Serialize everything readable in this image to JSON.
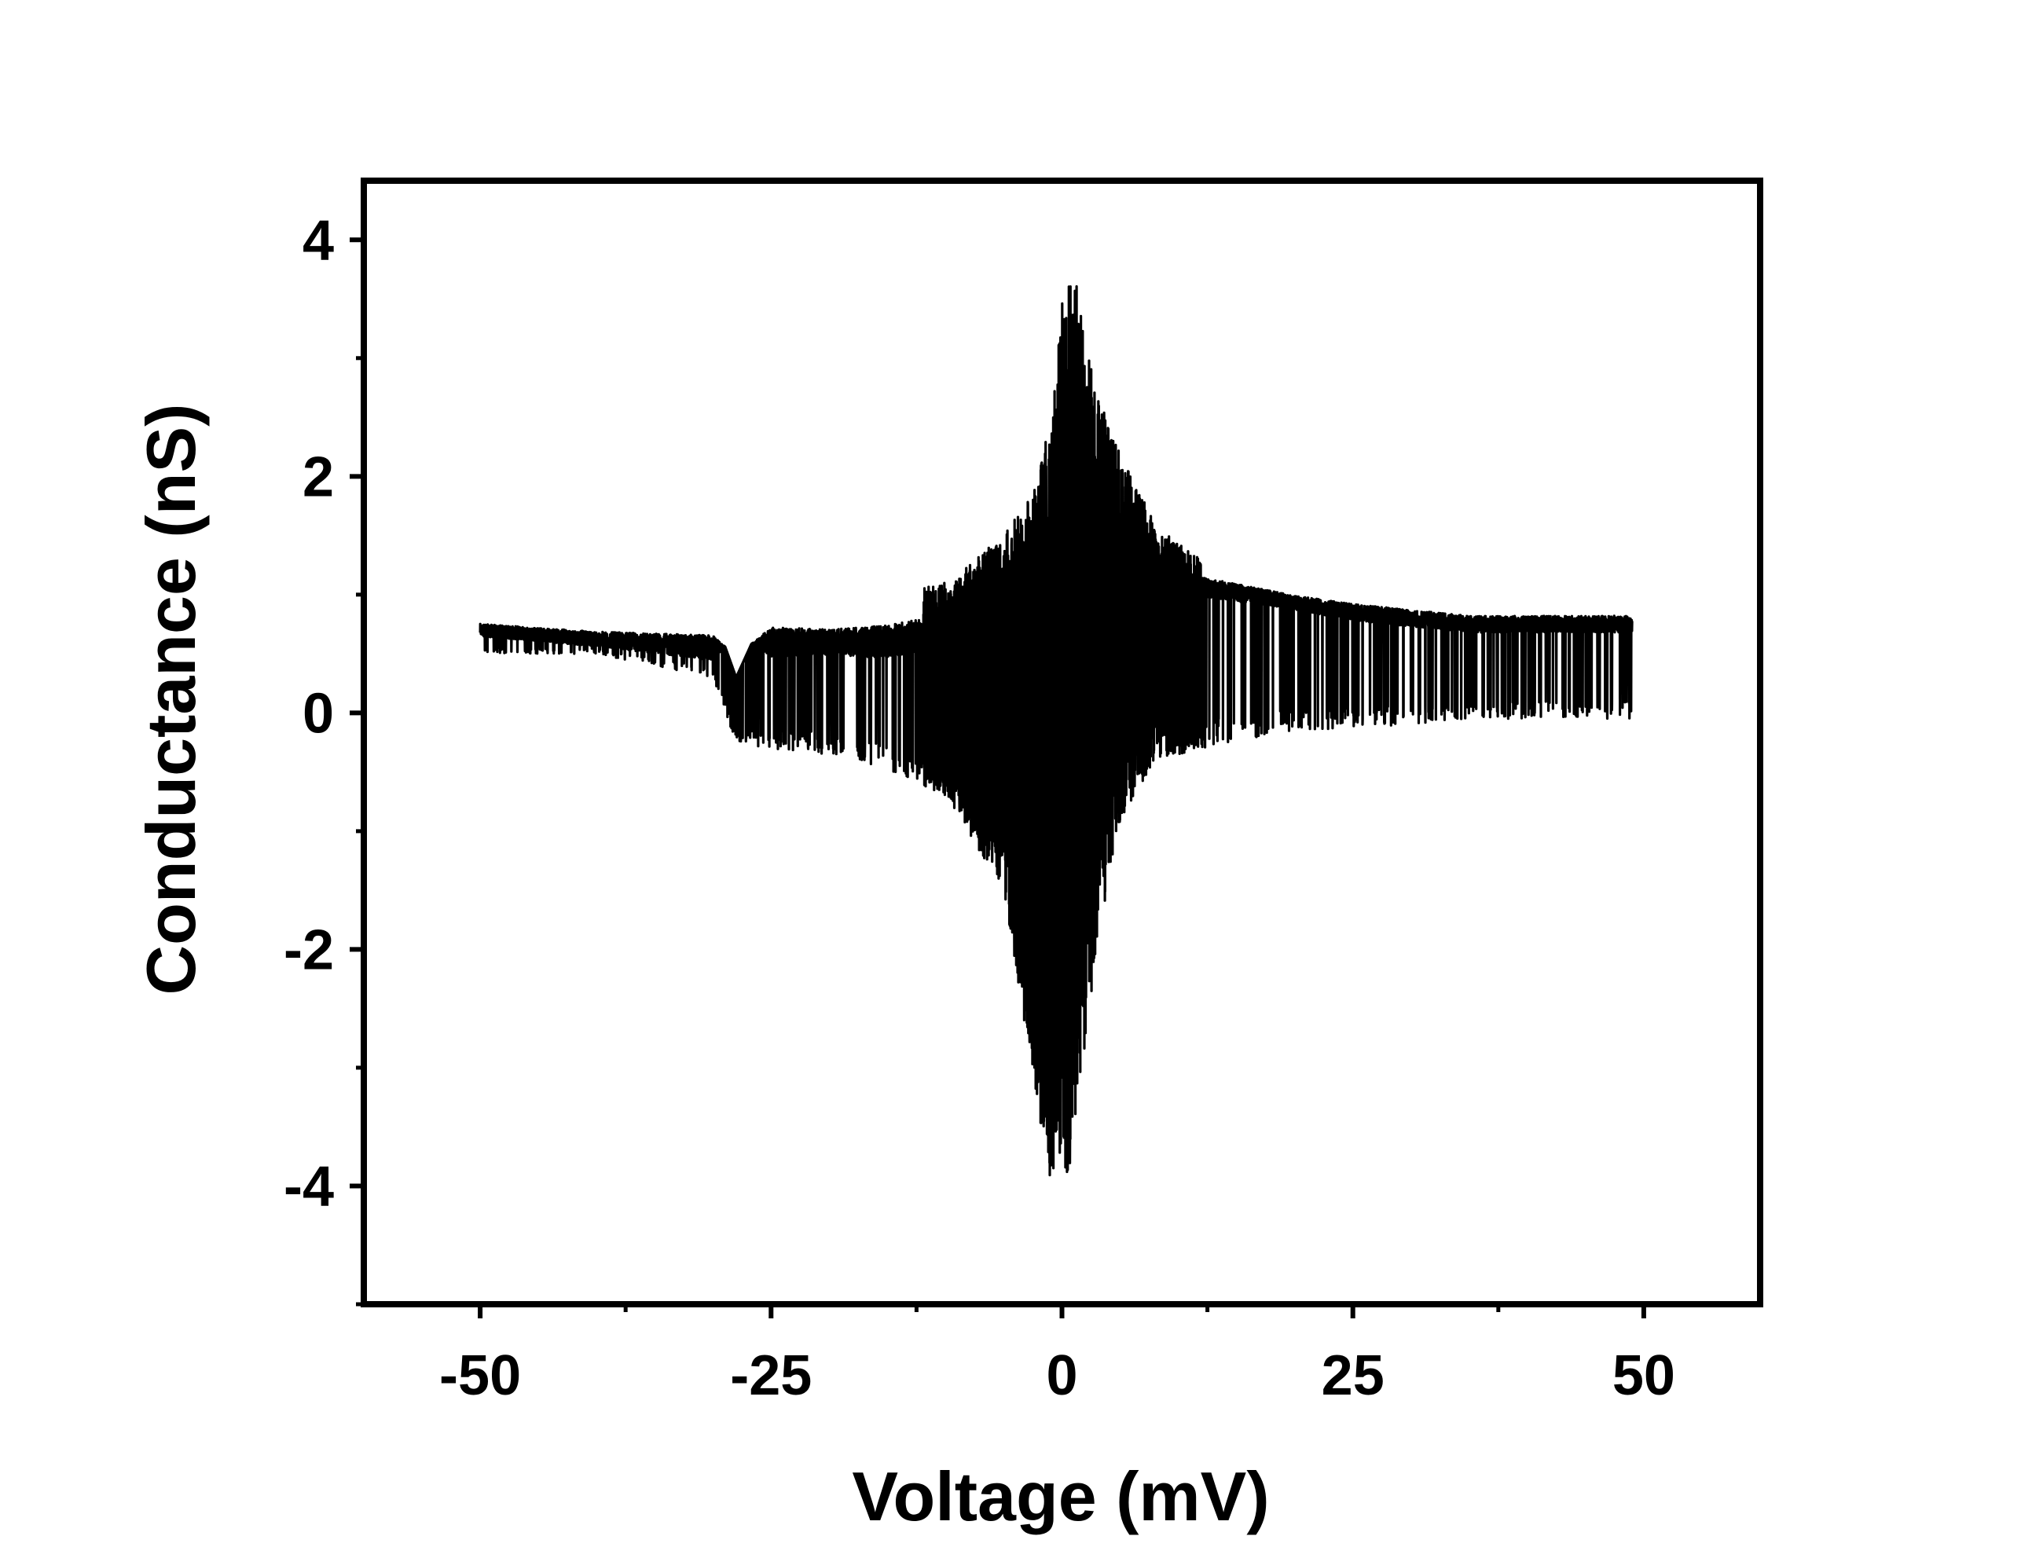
{
  "chart_data": {
    "type": "line",
    "title": "",
    "xlabel": "Voltage (mV)",
    "ylabel": "Conductance (nS)",
    "xlim": [
      -60,
      60
    ],
    "ylim": [
      -5,
      4.5
    ],
    "x_ticks": [
      -50,
      -25,
      0,
      25,
      50
    ],
    "x_tick_labels": [
      "-50",
      "-25",
      "0",
      "25",
      "50"
    ],
    "y_ticks": [
      -4,
      -2,
      0,
      2,
      4
    ],
    "y_tick_labels": [
      "-4",
      "-2",
      "0",
      "2",
      "4"
    ],
    "grid": false,
    "legend": "none",
    "line_color": "#000000",
    "series": [
      {
        "x_range": [
          -50,
          49
        ],
        "description_of_envelope": [
          {
            "x": -50,
            "upper": 0.85,
            "lower": 0.5
          },
          {
            "x": -40,
            "upper": 0.8,
            "lower": 0.5
          },
          {
            "x": -30,
            "upper": 0.85,
            "lower": 0.3
          },
          {
            "x": -28,
            "upper": 0.3,
            "lower": -0.25
          },
          {
            "x": -25,
            "upper": 0.95,
            "lower": -0.3
          },
          {
            "x": -20,
            "upper": 0.9,
            "lower": -0.35
          },
          {
            "x": -15,
            "upper": 1.0,
            "lower": -0.5
          },
          {
            "x": -10,
            "upper": 1.1,
            "lower": -0.7
          },
          {
            "x": -5,
            "upper": 1.5,
            "lower": -1.5
          },
          {
            "x": -2,
            "upper": 2.0,
            "lower": -3.4
          },
          {
            "x": -1,
            "upper": 2.5,
            "lower": -3.95
          },
          {
            "x": 0,
            "upper": 3.5,
            "lower": -3.7
          },
          {
            "x": 0.5,
            "upper": 3.75,
            "lower": -3.95
          },
          {
            "x": 1.5,
            "upper": 3.6,
            "lower": -3.2
          },
          {
            "x": 3,
            "upper": 2.8,
            "lower": -2.0
          },
          {
            "x": 5,
            "upper": 2.2,
            "lower": -0.9
          },
          {
            "x": 8,
            "upper": 1.6,
            "lower": -0.4
          },
          {
            "x": 12,
            "upper": 1.3,
            "lower": -0.3
          },
          {
            "x": 20,
            "upper": 1.1,
            "lower": -0.15
          },
          {
            "x": 30,
            "upper": 1.0,
            "lower": -0.1
          },
          {
            "x": 35,
            "upper": 0.95,
            "lower": -0.05
          },
          {
            "x": 40,
            "upper": 0.95,
            "lower": -0.05
          },
          {
            "x": 49,
            "upper": 0.95,
            "lower": -0.05
          }
        ],
        "baseline": [
          {
            "x": -50,
            "y": 0.7
          },
          {
            "x": -30,
            "y": 0.55
          },
          {
            "x": -25,
            "y": 0.6
          },
          {
            "x": -15,
            "y": 0.6
          },
          {
            "x": 0,
            "y": 0.9
          },
          {
            "x": 10,
            "y": 1.1
          },
          {
            "x": 25,
            "y": 0.85
          },
          {
            "x": 35,
            "y": 0.75
          },
          {
            "x": 49,
            "y": 0.75
          }
        ]
      }
    ]
  }
}
